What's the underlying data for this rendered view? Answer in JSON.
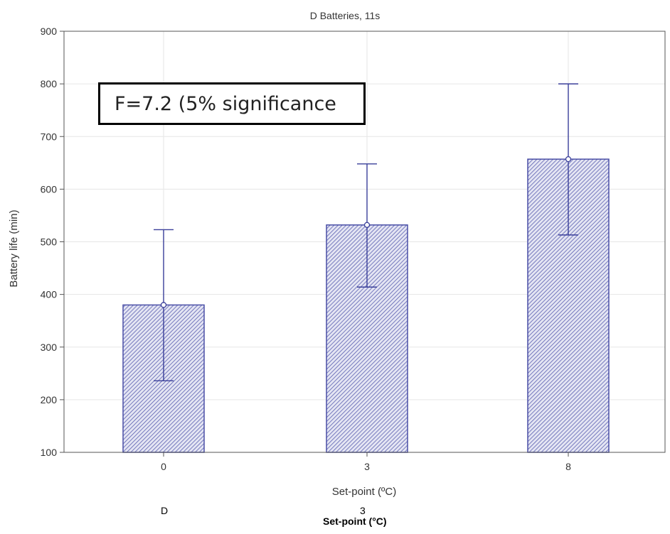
{
  "chart_data": {
    "type": "bar",
    "title": "D Batteries, 11s",
    "xlabel": "Set-point (ºC)",
    "ylabel": "Battery life (min)",
    "categories": [
      "0",
      "3",
      "8"
    ],
    "values": [
      380,
      532,
      657
    ],
    "error_upper": [
      523,
      648,
      800
    ],
    "error_lower": [
      236,
      414,
      513
    ],
    "ylim": [
      100,
      900
    ],
    "yticks": [
      100,
      200,
      300,
      400,
      500,
      600,
      700,
      800,
      900
    ],
    "grid": true,
    "bar_color": "#4a4fa6",
    "error_color": "#3a3f9a",
    "annotation": "F=7.2 (5% significance"
  },
  "footer": {
    "left_label": "D",
    "center_label": "3",
    "axis_label_bold": "Set-point (°C)"
  }
}
